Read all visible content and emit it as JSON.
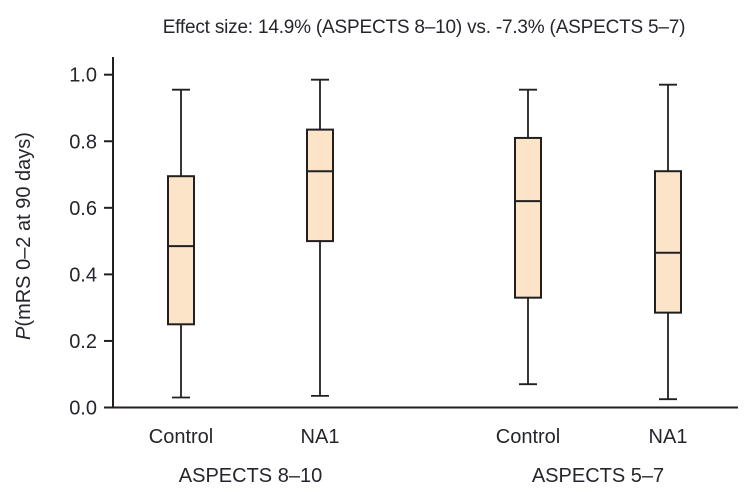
{
  "chart_data": {
    "type": "boxplot",
    "title": "Effect size: 14.9% (ASPECTS 8–10) vs. -7.3% (ASPECTS 5–7)",
    "ylabel_italic": "P",
    "ylabel_rest": "(mRS 0–2 at 90 days)",
    "ylim": [
      0.0,
      1.0
    ],
    "yticks": {
      "values": [
        0.0,
        0.2,
        0.4,
        0.6,
        0.8,
        1.0
      ],
      "labels": [
        "0.0",
        "0.2",
        "0.4",
        "0.6",
        "0.8",
        "1.0"
      ]
    },
    "grid": false,
    "legend": "none",
    "groups": [
      {
        "label": "ASPECTS 8–10",
        "boxes": [
          {
            "category": "Control",
            "whisker_low": 0.03,
            "q1": 0.25,
            "median": 0.485,
            "q3": 0.695,
            "whisker_high": 0.955
          },
          {
            "category": "NA1",
            "whisker_low": 0.035,
            "q1": 0.5,
            "median": 0.71,
            "q3": 0.835,
            "whisker_high": 0.985
          }
        ]
      },
      {
        "label": "ASPECTS 5–7",
        "boxes": [
          {
            "category": "Control",
            "whisker_low": 0.07,
            "q1": 0.33,
            "median": 0.62,
            "q3": 0.81,
            "whisker_high": 0.955
          },
          {
            "category": "NA1",
            "whisker_low": 0.025,
            "q1": 0.285,
            "median": 0.465,
            "q3": 0.71,
            "whisker_high": 0.97
          }
        ]
      }
    ],
    "colors": {
      "box_fill": "#fbe4c8",
      "line": "#231f20",
      "text": "#24262c"
    }
  }
}
